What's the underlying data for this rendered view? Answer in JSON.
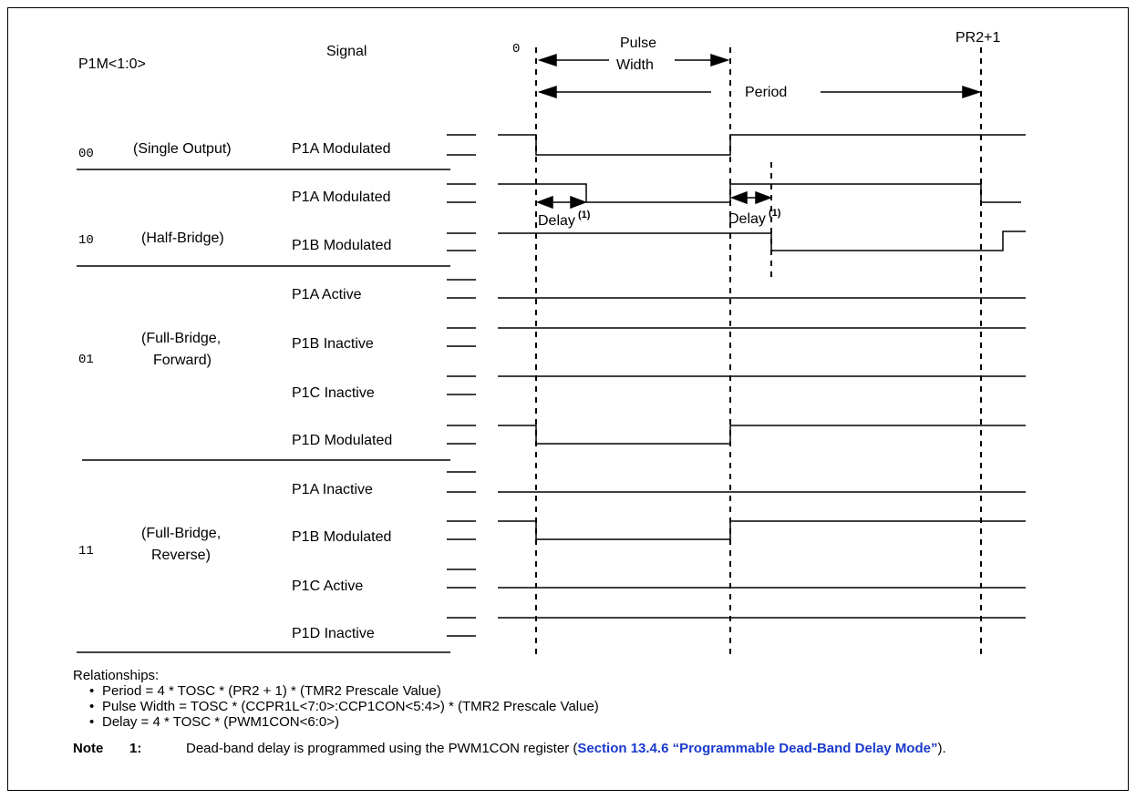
{
  "headers": {
    "mode": "P1M<1:0>",
    "signal": "Signal",
    "zero": "0",
    "pulse_width_line1": "Pulse",
    "pulse_width_line2": "Width",
    "period": "Period",
    "pr2": "PR2+1"
  },
  "modes": [
    {
      "code": "00",
      "name_lines": [
        "(Single Output)"
      ]
    },
    {
      "code": "10",
      "name_lines": [
        "(Half-Bridge)"
      ]
    },
    {
      "code": "01",
      "name_lines": [
        "(Full-Bridge,",
        "Forward)"
      ]
    },
    {
      "code": "11",
      "name_lines": [
        "(Full-Bridge,",
        "Reverse)"
      ]
    }
  ],
  "signals": [
    "P1A Modulated",
    "P1A Modulated",
    "P1B Modulated",
    "P1A Active",
    "P1B Inactive",
    "P1C Inactive",
    "P1D Modulated",
    "P1A Inactive",
    "P1B Modulated",
    "P1C Active",
    "P1D Inactive"
  ],
  "delay_label": "Delay",
  "delay_sup": "(1)",
  "relationships": {
    "title": "Relationships:",
    "items": [
      "Period = 4 * TOSC * (PR2 + 1) * (TMR2 Prescale Value)",
      "Pulse Width = TOSC * (CCPR1L<7:0>:CCP1CON<5:4>) * (TMR2 Prescale Value)",
      "Delay = 4 * TOSC * (PWM1CON<6:0>)"
    ]
  },
  "note": {
    "label": "Note",
    "number": "1:",
    "text_before": "Dead-band delay is programmed using the PWM1CON register (",
    "link_text": "Section 13.4.6 “Programmable Dead-Band Delay Mode”",
    "text_after": ")."
  }
}
